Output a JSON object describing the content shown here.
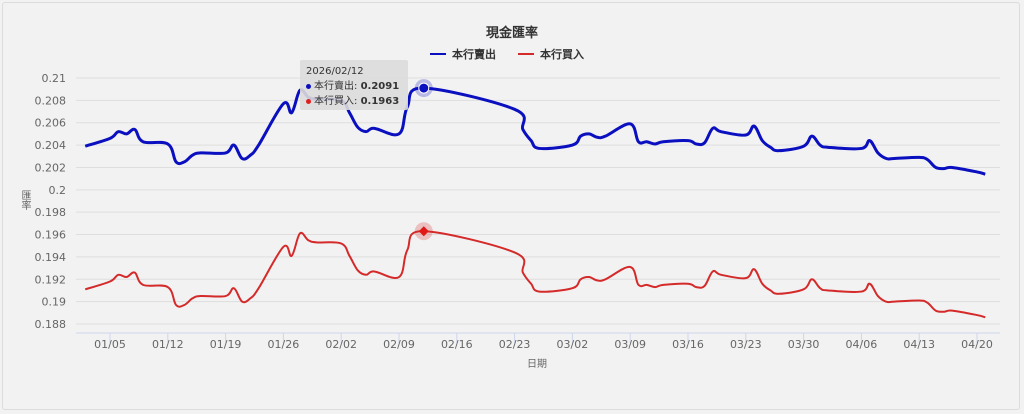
{
  "chart_data": {
    "type": "line",
    "title": "現金匯率",
    "xlabel": "日期",
    "ylabel": "匯率",
    "ylim": [
      0.188,
      0.21
    ],
    "yticks": [
      "0.21",
      "0.208",
      "0.206",
      "0.204",
      "0.202",
      "0.2",
      "0.198",
      "0.196",
      "0.194",
      "0.192",
      "0.19",
      "0.188"
    ],
    "xticks": [
      "01/05",
      "01/12",
      "01/19",
      "01/26",
      "02/02",
      "02/09",
      "02/16",
      "02/23",
      "03/02",
      "03/09",
      "03/16",
      "03/23",
      "03/30",
      "04/06",
      "04/13",
      "04/20"
    ],
    "grid": true,
    "legend_position": "top",
    "x": [
      "01/02",
      "01/05",
      "01/06",
      "01/07",
      "01/08",
      "01/09",
      "01/12",
      "01/13",
      "01/14",
      "01/15",
      "01/16",
      "01/19",
      "01/20",
      "01/21",
      "01/22",
      "01/23",
      "01/26",
      "01/27",
      "01/28",
      "01/29",
      "01/30",
      "02/02",
      "02/03",
      "02/04",
      "02/05",
      "02/06",
      "02/09",
      "02/10",
      "02/12",
      "02/23",
      "02/24",
      "02/25",
      "02/26",
      "03/02",
      "03/03",
      "03/04",
      "03/05",
      "03/06",
      "03/09",
      "03/10",
      "03/11",
      "03/12",
      "03/13",
      "03/16",
      "03/17",
      "03/18",
      "03/19",
      "03/20",
      "03/23",
      "03/24",
      "03/25",
      "03/26",
      "03/27",
      "03/30",
      "03/31",
      "04/01",
      "04/02",
      "04/06",
      "04/07",
      "04/08",
      "04/09",
      "04/10",
      "04/13",
      "04/14",
      "04/15",
      "04/16",
      "04/17",
      "04/20",
      "04/21"
    ],
    "series": [
      {
        "name": "本行賣出",
        "color": "#0a0fbf",
        "values": [
          0.2039,
          0.2046,
          0.2052,
          0.205,
          0.2054,
          0.2043,
          0.2041,
          0.2025,
          0.2025,
          0.2031,
          0.2033,
          0.2033,
          0.204,
          0.2028,
          0.2031,
          0.204,
          0.2077,
          0.2069,
          0.2089,
          0.2083,
          0.2081,
          0.208,
          0.2069,
          0.2056,
          0.2052,
          0.2055,
          0.205,
          0.2074,
          0.2091,
          0.2072,
          0.2054,
          0.2044,
          0.2037,
          0.204,
          0.2048,
          0.205,
          0.2047,
          0.2048,
          0.2059,
          0.2043,
          0.2043,
          0.2041,
          0.2043,
          0.2044,
          0.2041,
          0.2042,
          0.2055,
          0.2052,
          0.2049,
          0.2057,
          0.2044,
          0.2038,
          0.2035,
          0.2039,
          0.2048,
          0.204,
          0.2038,
          0.2037,
          0.2044,
          0.2033,
          0.2028,
          0.2028,
          0.2029,
          0.2027,
          0.202,
          0.2019,
          0.202,
          0.2016,
          0.2014
        ]
      },
      {
        "name": "本行買入",
        "color": "#d42a2a",
        "values": [
          0.1911,
          0.1918,
          0.1924,
          0.1922,
          0.1926,
          0.1915,
          0.1913,
          0.1897,
          0.1897,
          0.1903,
          0.1905,
          0.1905,
          0.1912,
          0.19,
          0.1903,
          0.1912,
          0.1949,
          0.1941,
          0.1961,
          0.1955,
          0.1953,
          0.1952,
          0.1941,
          0.1928,
          0.1924,
          0.1927,
          0.1922,
          0.1946,
          0.1963,
          0.1944,
          0.1926,
          0.1916,
          0.1909,
          0.1912,
          0.192,
          0.1922,
          0.1919,
          0.192,
          0.1931,
          0.1915,
          0.1915,
          0.1913,
          0.1915,
          0.1916,
          0.1913,
          0.1914,
          0.1927,
          0.1924,
          0.1921,
          0.1929,
          0.1916,
          0.191,
          0.1907,
          0.1911,
          0.192,
          0.1912,
          0.191,
          0.1909,
          0.1916,
          0.1905,
          0.19,
          0.19,
          0.1901,
          0.1899,
          0.1892,
          0.1891,
          0.1892,
          0.1888,
          0.1886
        ]
      }
    ],
    "highlight": {
      "date": "2026/02/12",
      "sell": "0.2091",
      "buy": "0.1963"
    }
  },
  "header": {
    "title": "現金匯率"
  },
  "legend": {
    "items": [
      {
        "label": "本行賣出",
        "color": "#0a0fbf"
      },
      {
        "label": "本行買入",
        "color": "#d42a2a"
      }
    ]
  },
  "axes": {
    "xlabel": "日期",
    "ylabel": "匯率"
  },
  "tooltip": {
    "date": "2026/02/12",
    "sell_label": "本行賣出: ",
    "sell_value": "0.2091",
    "buy_label": "本行買入: ",
    "buy_value": "0.1963"
  }
}
